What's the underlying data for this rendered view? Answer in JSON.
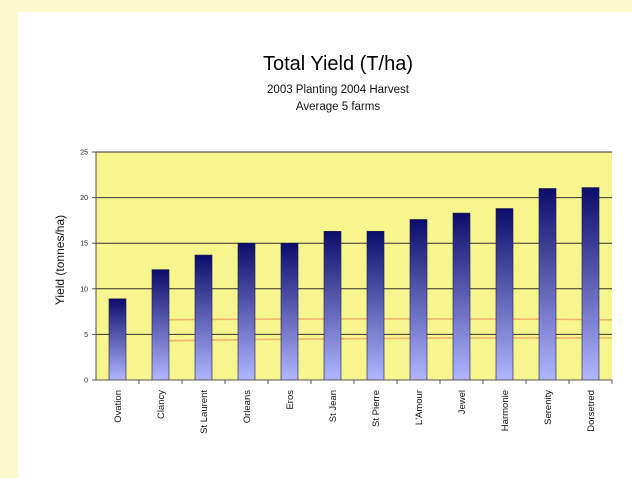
{
  "colors": {
    "background": "#fdf9cf",
    "plot_area": "#f7f58e",
    "bar_top": "#0c0c6a",
    "bar_bottom": "#b0b6ff",
    "ref_line": "#f0a868"
  },
  "chart_data": {
    "type": "bar",
    "title": "Total Yield (T/ha)",
    "subtitle_lines": [
      "2003 Planting 2004 Harvest",
      "Average 5 farms"
    ],
    "xlabel": "",
    "ylabel": "Yield (tonnes/ha)",
    "ylim": [
      0,
      25
    ],
    "yticks": [
      0,
      5,
      10,
      15,
      20,
      25
    ],
    "grid": true,
    "legend": "none",
    "categories": [
      "Ovation",
      "Clancy",
      "St Laurent",
      "Orleans",
      "Eros",
      "St Jean",
      "St Pierre",
      "L'Amour",
      "Jewel",
      "Harmonie",
      "Serenity",
      "Dorsetred"
    ],
    "values": [
      8.9,
      12.1,
      13.7,
      15.0,
      15.0,
      16.3,
      16.3,
      17.6,
      18.3,
      18.8,
      21.0,
      21.1
    ],
    "annotations": [
      {
        "type": "curve",
        "desc": "orange reference line",
        "y_left": 4.3,
        "y_right": 4.6
      },
      {
        "type": "curve",
        "desc": "orange reference line",
        "y_left": 6.6,
        "y_right": 6.6
      }
    ]
  }
}
